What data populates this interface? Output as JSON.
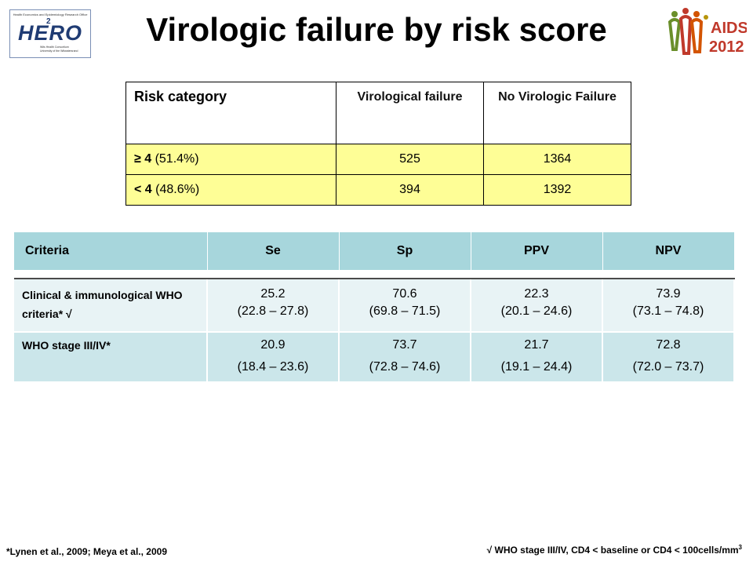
{
  "header": {
    "title": "Virologic failure by risk score",
    "hero_logo": {
      "word": "HERO",
      "superscript": "2",
      "top_text": "Health Economics and Epidemiology Research Office",
      "tag_line1": "Wits Health Consortium",
      "tag_line2": "University of the Witwatersrand"
    },
    "aids_logo": {
      "line1": "AIDS",
      "line2": "2012",
      "colors": [
        "#c0392b",
        "#6a8f2a",
        "#d35400",
        "#b7950b"
      ]
    }
  },
  "risk_table": {
    "header_category": "Risk category",
    "header_vf": "Virological failure",
    "header_nvf": "No Virologic Failure",
    "rows": [
      {
        "label_bold": "≥ 4",
        "label_rest": " (51.4%)",
        "vf": "525",
        "nvf": "1364"
      },
      {
        "label_bold": "< 4",
        "label_rest": " (48.6%)",
        "vf": "394",
        "nvf": "1392"
      }
    ],
    "row_color": "#fefe96"
  },
  "criteria_table": {
    "headers": [
      "Criteria",
      "Se",
      "Sp",
      "PPV",
      "NPV"
    ],
    "rows": [
      {
        "label": "Clinical & immunological WHO criteria* √",
        "values": [
          {
            "v": "25.2",
            "ci": "(22.8 – 27.8)"
          },
          {
            "v": "70.6",
            "ci": "(69.8 – 71.5)"
          },
          {
            "v": "22.3",
            "ci": "(20.1 – 24.6)"
          },
          {
            "v": "73.9",
            "ci": "(73.1 – 74.8)"
          }
        ]
      },
      {
        "label": "WHO stage III/IV*",
        "values": [
          {
            "v": "20.9",
            "ci": "(18.4 – 23.6)"
          },
          {
            "v": "73.7",
            "ci": "(72.8 – 74.6)"
          },
          {
            "v": "21.7",
            "ci": "(19.1 – 24.4)"
          },
          {
            "v": "72.8",
            "ci": "(72.0 – 73.7)"
          }
        ]
      }
    ],
    "header_color": "#a7d6dc"
  },
  "footer": {
    "left": "*Lynen et al., 2009; Meya et al., 2009",
    "right": "√ WHO stage III/IV, CD4 < baseline or CD4 < 100cells/mm",
    "right_sup": "3"
  }
}
